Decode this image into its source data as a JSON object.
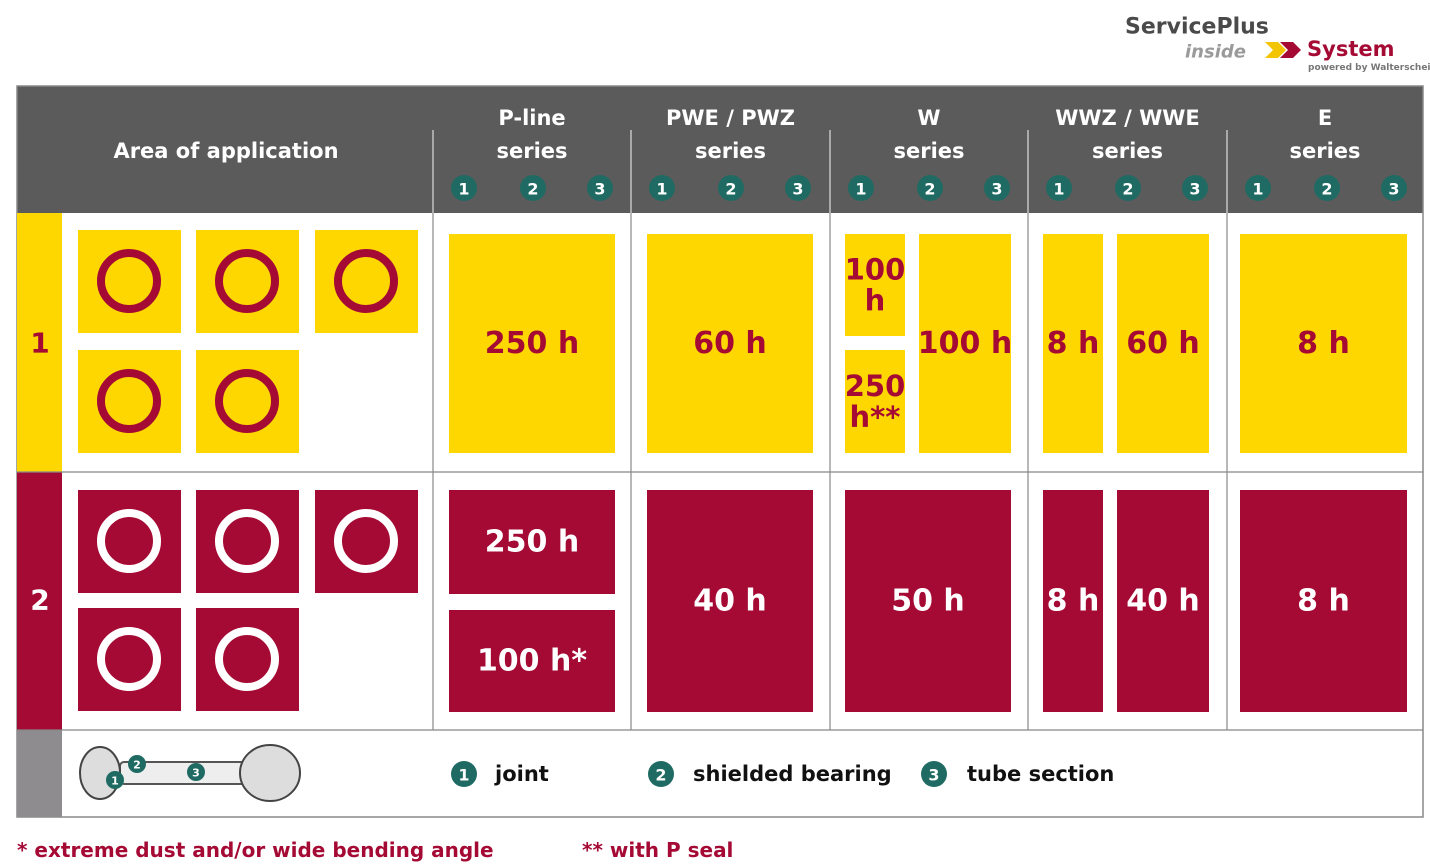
{
  "logo": {
    "brand": "ServicePlus",
    "inside": "inside",
    "system": "System",
    "powered_by": "powered by Walterscheid"
  },
  "header": {
    "area_label": "Area of application",
    "parts": [
      "1",
      "2",
      "3"
    ],
    "columns": [
      {
        "lines": [
          "P-line",
          "series"
        ]
      },
      {
        "lines": [
          "PWE / PWZ",
          "series"
        ]
      },
      {
        "lines": [
          "W",
          "series"
        ]
      },
      {
        "lines": [
          "WWZ / WWE",
          "series"
        ]
      },
      {
        "lines": [
          "E",
          "series"
        ]
      }
    ]
  },
  "rows": [
    {
      "label": "1",
      "cells": [
        {
          "lines": [
            "250 h"
          ]
        },
        {
          "lines": [
            "60 h"
          ]
        },
        {
          "lines": [
            "100",
            "h"
          ]
        },
        {
          "lines": [
            "250",
            "h**"
          ]
        },
        {
          "lines": [
            "100 h"
          ]
        },
        {
          "lines": [
            "8 h"
          ]
        },
        {
          "lines": [
            "60 h"
          ]
        },
        {
          "lines": [
            "8 h"
          ]
        }
      ]
    },
    {
      "label": "2",
      "cells": [
        {
          "lines": [
            "250 h"
          ]
        },
        {
          "lines": [
            "100 h*"
          ]
        },
        {
          "lines": [
            "40 h"
          ]
        },
        {
          "lines": [
            "50 h"
          ]
        },
        {
          "lines": [
            "8 h"
          ]
        },
        {
          "lines": [
            "40 h"
          ]
        },
        {
          "lines": [
            "8 h"
          ]
        }
      ]
    }
  ],
  "legend": [
    {
      "number": "1",
      "label": "joint"
    },
    {
      "number": "2",
      "label": "shielded bearing"
    },
    {
      "number": "3",
      "label": "tube section"
    }
  ],
  "footnotes": [
    "* extreme dust and/or wide bending angle",
    "** with P seal"
  ]
}
